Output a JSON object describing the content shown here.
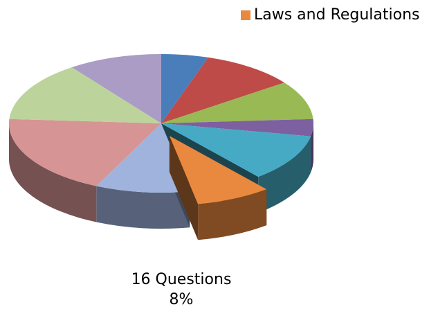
{
  "chart_data": {
    "type": "pie3d",
    "categories": [
      null,
      null,
      null,
      null,
      null,
      "Laws and Regulations",
      null,
      null,
      null,
      null
    ],
    "values": [
      5,
      10,
      9,
      4,
      11,
      8,
      10,
      19,
      14,
      10
    ],
    "value_labels": [
      null,
      null,
      null,
      null,
      null,
      "8%",
      null,
      null,
      null,
      null
    ],
    "count_labels": [
      null,
      null,
      null,
      null,
      null,
      "16 Questions",
      null,
      null,
      null,
      null
    ],
    "colors": [
      "#4a7ebb",
      "#be4b48",
      "#98b954",
      "#7d60a0",
      "#46aac5",
      "#e8893f",
      "#9fb3dd",
      "#d79494",
      "#bcd49c",
      "#aa9cc4"
    ],
    "exploded": 5,
    "legend": "top-right"
  }
}
